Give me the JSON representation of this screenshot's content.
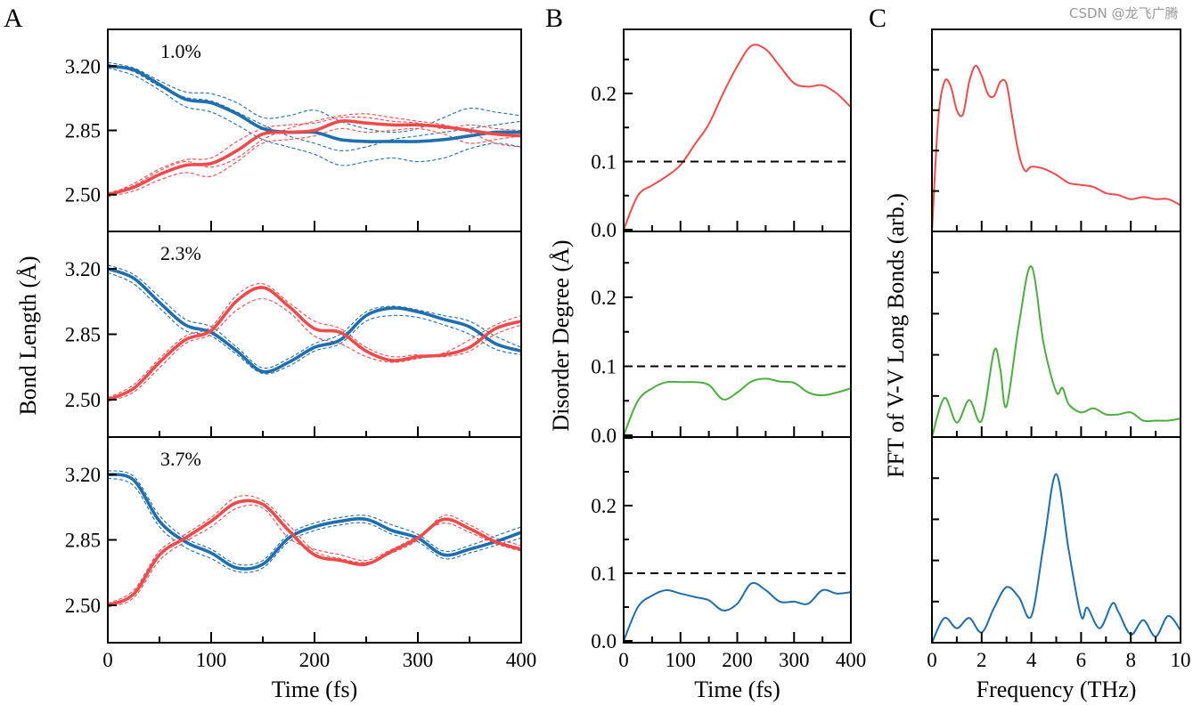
{
  "colors": {
    "blue": "#1f6eae",
    "red": "#f04a4a",
    "green": "#4bae3e",
    "reference_line": "#000000"
  },
  "watermark": "CSDN @龙飞广腾",
  "chart_data": [
    {
      "panel_label": "A",
      "type": "line",
      "ylabel": "Bond Length (Å)",
      "xlabel": "Time (fs)",
      "xlim": [
        0,
        400
      ],
      "ylim": [
        2.3,
        3.4
      ],
      "xticks": [
        0,
        100,
        200,
        300,
        400
      ],
      "yticks": [
        "2.50",
        "2.85",
        "3.20"
      ],
      "x": [
        0,
        25,
        50,
        75,
        100,
        125,
        150,
        175,
        200,
        225,
        250,
        275,
        300,
        325,
        350,
        375,
        400
      ],
      "subplots": [
        {
          "annotation": "1.0%",
          "series": [
            {
              "color": "blue",
              "style": "solid",
              "values": [
                3.2,
                3.18,
                3.1,
                3.02,
                3.0,
                2.94,
                2.86,
                2.84,
                2.84,
                2.8,
                2.79,
                2.79,
                2.79,
                2.8,
                2.82,
                2.84,
                2.84
              ]
            },
            {
              "color": "red",
              "style": "solid",
              "values": [
                2.5,
                2.54,
                2.61,
                2.66,
                2.67,
                2.74,
                2.83,
                2.84,
                2.85,
                2.9,
                2.89,
                2.88,
                2.88,
                2.87,
                2.85,
                2.83,
                2.82
              ]
            },
            {
              "color": "blue",
              "style": "dashed",
              "values": [
                3.22,
                3.19,
                3.12,
                3.06,
                3.05,
                3.0,
                2.92,
                2.93,
                2.96,
                2.9,
                2.86,
                2.84,
                2.86,
                2.92,
                2.97,
                2.95,
                2.93
              ]
            },
            {
              "color": "blue",
              "style": "dashed",
              "values": [
                3.19,
                3.15,
                3.07,
                2.98,
                2.95,
                2.88,
                2.8,
                2.76,
                2.72,
                2.66,
                2.68,
                2.7,
                2.68,
                2.7,
                2.75,
                2.78,
                2.76
              ]
            },
            {
              "color": "blue",
              "style": "dashed",
              "values": [
                3.21,
                3.17,
                3.09,
                3.03,
                3.01,
                2.95,
                2.88,
                2.82,
                2.78,
                2.74,
                2.76,
                2.8,
                2.82,
                2.84,
                2.86,
                2.88,
                2.9
              ]
            },
            {
              "color": "red",
              "style": "dashed",
              "values": [
                2.51,
                2.55,
                2.63,
                2.68,
                2.65,
                2.7,
                2.8,
                2.86,
                2.9,
                2.93,
                2.94,
                2.92,
                2.9,
                2.88,
                2.84,
                2.78,
                2.76
              ]
            },
            {
              "color": "red",
              "style": "dashed",
              "values": [
                2.49,
                2.52,
                2.58,
                2.62,
                2.6,
                2.68,
                2.78,
                2.8,
                2.82,
                2.86,
                2.84,
                2.85,
                2.86,
                2.83,
                2.78,
                2.8,
                2.82
              ]
            },
            {
              "color": "red",
              "style": "dashed",
              "values": [
                2.5,
                2.56,
                2.64,
                2.69,
                2.7,
                2.79,
                2.86,
                2.88,
                2.89,
                2.92,
                2.92,
                2.9,
                2.89,
                2.86,
                2.88,
                2.86,
                2.85
              ]
            }
          ]
        },
        {
          "annotation": "2.3%",
          "series": [
            {
              "color": "blue",
              "style": "solid",
              "values": [
                3.2,
                3.15,
                3.02,
                2.9,
                2.86,
                2.76,
                2.65,
                2.7,
                2.78,
                2.82,
                2.95,
                2.99,
                2.97,
                2.93,
                2.89,
                2.8,
                2.76
              ]
            },
            {
              "color": "red",
              "style": "solid",
              "values": [
                2.5,
                2.56,
                2.7,
                2.82,
                2.87,
                3.03,
                3.1,
                3.0,
                2.88,
                2.86,
                2.76,
                2.71,
                2.73,
                2.74,
                2.78,
                2.88,
                2.92
              ]
            },
            {
              "color": "blue",
              "style": "dashed",
              "values": [
                3.22,
                3.17,
                3.05,
                2.93,
                2.89,
                2.78,
                2.67,
                2.72,
                2.8,
                2.85,
                2.97,
                3.0,
                2.98,
                2.95,
                2.92,
                2.84,
                2.78
              ]
            },
            {
              "color": "blue",
              "style": "dashed",
              "values": [
                3.18,
                3.12,
                2.99,
                2.87,
                2.84,
                2.74,
                2.64,
                2.68,
                2.76,
                2.8,
                2.92,
                2.95,
                2.94,
                2.9,
                2.85,
                2.77,
                2.74
              ]
            },
            {
              "color": "red",
              "style": "dashed",
              "values": [
                2.49,
                2.54,
                2.67,
                2.8,
                2.85,
                2.98,
                3.04,
                2.97,
                2.84,
                2.8,
                2.73,
                2.7,
                2.72,
                2.75,
                2.82,
                2.9,
                2.95
              ]
            },
            {
              "color": "red",
              "style": "dashed",
              "values": [
                2.51,
                2.58,
                2.72,
                2.84,
                2.89,
                3.06,
                3.12,
                3.02,
                2.92,
                2.88,
                2.78,
                2.73,
                2.74,
                2.73,
                2.76,
                2.85,
                2.9
              ]
            }
          ]
        },
        {
          "annotation": "3.7%",
          "series": [
            {
              "color": "blue",
              "style": "solid",
              "values": [
                3.2,
                3.17,
                2.95,
                2.84,
                2.78,
                2.7,
                2.72,
                2.86,
                2.92,
                2.95,
                2.96,
                2.9,
                2.86,
                2.77,
                2.8,
                2.84,
                2.89
              ]
            },
            {
              "color": "red",
              "style": "solid",
              "values": [
                2.5,
                2.56,
                2.77,
                2.86,
                2.95,
                3.05,
                3.04,
                2.9,
                2.77,
                2.74,
                2.72,
                2.79,
                2.86,
                2.96,
                2.91,
                2.84,
                2.8
              ]
            },
            {
              "color": "blue",
              "style": "dashed",
              "values": [
                3.22,
                3.19,
                2.98,
                2.86,
                2.8,
                2.72,
                2.74,
                2.88,
                2.94,
                2.97,
                2.98,
                2.93,
                2.88,
                2.79,
                2.82,
                2.87,
                2.92
              ]
            },
            {
              "color": "blue",
              "style": "dashed",
              "values": [
                3.18,
                3.14,
                2.92,
                2.81,
                2.75,
                2.68,
                2.7,
                2.84,
                2.9,
                2.93,
                2.94,
                2.88,
                2.84,
                2.75,
                2.78,
                2.82,
                2.86
              ]
            },
            {
              "color": "red",
              "style": "dashed",
              "values": [
                2.49,
                2.54,
                2.74,
                2.84,
                2.92,
                3.02,
                3.02,
                2.86,
                2.8,
                2.77,
                2.74,
                2.8,
                2.87,
                2.94,
                2.89,
                2.83,
                2.79
              ]
            },
            {
              "color": "red",
              "style": "dashed",
              "values": [
                2.51,
                2.58,
                2.79,
                2.88,
                2.97,
                3.08,
                3.06,
                2.93,
                2.79,
                2.75,
                2.73,
                2.78,
                2.85,
                2.98,
                2.93,
                2.86,
                2.82
              ]
            }
          ]
        }
      ]
    },
    {
      "panel_label": "B",
      "type": "line",
      "ylabel": "Disorder Degree (Å)",
      "xlabel": "Time (fs)",
      "xlim": [
        0,
        400
      ],
      "ylim": [
        0,
        0.3
      ],
      "xticks": [
        0,
        100,
        200,
        300,
        400
      ],
      "yticks": [
        "0.0",
        "0.1",
        "0.2",
        "0.3"
      ],
      "reference_line": 0.1,
      "x": [
        0,
        25,
        50,
        75,
        100,
        125,
        150,
        175,
        200,
        225,
        250,
        275,
        300,
        325,
        350,
        375,
        400
      ],
      "subplots": [
        {
          "series": [
            {
              "color": "red",
              "values": [
                0,
                0.05,
                0.065,
                0.078,
                0.095,
                0.125,
                0.155,
                0.2,
                0.24,
                0.27,
                0.265,
                0.24,
                0.215,
                0.21,
                0.212,
                0.2,
                0.18
              ]
            }
          ]
        },
        {
          "series": [
            {
              "color": "green",
              "values": [
                0,
                0.05,
                0.068,
                0.077,
                0.077,
                0.077,
                0.073,
                0.052,
                0.062,
                0.078,
                0.082,
                0.078,
                0.076,
                0.062,
                0.058,
                0.062,
                0.068
              ]
            }
          ]
        },
        {
          "series": [
            {
              "color": "blue",
              "values": [
                0,
                0.05,
                0.067,
                0.075,
                0.07,
                0.065,
                0.06,
                0.045,
                0.055,
                0.085,
                0.075,
                0.058,
                0.058,
                0.055,
                0.075,
                0.07,
                0.072
              ]
            }
          ]
        }
      ]
    },
    {
      "panel_label": "C",
      "type": "line",
      "ylabel": "FFT of V-V Long Bonds (arb.)",
      "xlabel": "Frequency (THz)",
      "xlim": [
        0,
        10
      ],
      "ylim": [
        0,
        1
      ],
      "xticks": [
        0,
        2,
        4,
        6,
        8,
        10
      ],
      "subplots": [
        {
          "series": [
            {
              "color": "red",
              "x": [
                0,
                0.25,
                0.5,
                0.75,
                1.0,
                1.25,
                1.5,
                1.75,
                2.0,
                2.25,
                2.5,
                2.75,
                3.0,
                3.25,
                3.5,
                3.75,
                4.0,
                4.5,
                5.0,
                5.5,
                6.0,
                6.5,
                7.0,
                7.5,
                8.0,
                8.5,
                9.0,
                9.5,
                10
              ],
              "values": [
                0,
                0.55,
                0.74,
                0.72,
                0.6,
                0.58,
                0.74,
                0.82,
                0.77,
                0.68,
                0.67,
                0.74,
                0.73,
                0.55,
                0.38,
                0.3,
                0.32,
                0.31,
                0.28,
                0.24,
                0.23,
                0.22,
                0.19,
                0.18,
                0.16,
                0.17,
                0.16,
                0.16,
                0.13
              ]
            }
          ]
        },
        {
          "series": [
            {
              "color": "green",
              "x": [
                0,
                0.5,
                1.0,
                1.5,
                2.0,
                2.5,
                2.75,
                3.0,
                3.5,
                4.0,
                4.5,
                5.0,
                5.25,
                5.5,
                6.0,
                6.5,
                7.0,
                7.5,
                8.0,
                8.5,
                9.0,
                9.5,
                10
              ],
              "values": [
                0,
                0.19,
                0.07,
                0.18,
                0.08,
                0.42,
                0.33,
                0.15,
                0.55,
                0.83,
                0.45,
                0.22,
                0.24,
                0.16,
                0.12,
                0.14,
                0.11,
                0.11,
                0.12,
                0.08,
                0.08,
                0.08,
                0.09
              ]
            }
          ]
        },
        {
          "series": [
            {
              "color": "blue",
              "x": [
                0,
                0.5,
                1.0,
                1.5,
                2.0,
                2.5,
                3.0,
                3.5,
                4.0,
                4.5,
                5.0,
                5.5,
                6.0,
                6.25,
                6.75,
                7.25,
                7.5,
                8.0,
                8.5,
                9.0,
                9.5,
                10
              ],
              "values": [
                0,
                0.12,
                0.07,
                0.12,
                0.05,
                0.17,
                0.27,
                0.22,
                0.13,
                0.48,
                0.82,
                0.45,
                0.13,
                0.17,
                0.07,
                0.19,
                0.15,
                0.04,
                0.11,
                0.03,
                0.13,
                0.06
              ]
            }
          ]
        }
      ]
    }
  ]
}
